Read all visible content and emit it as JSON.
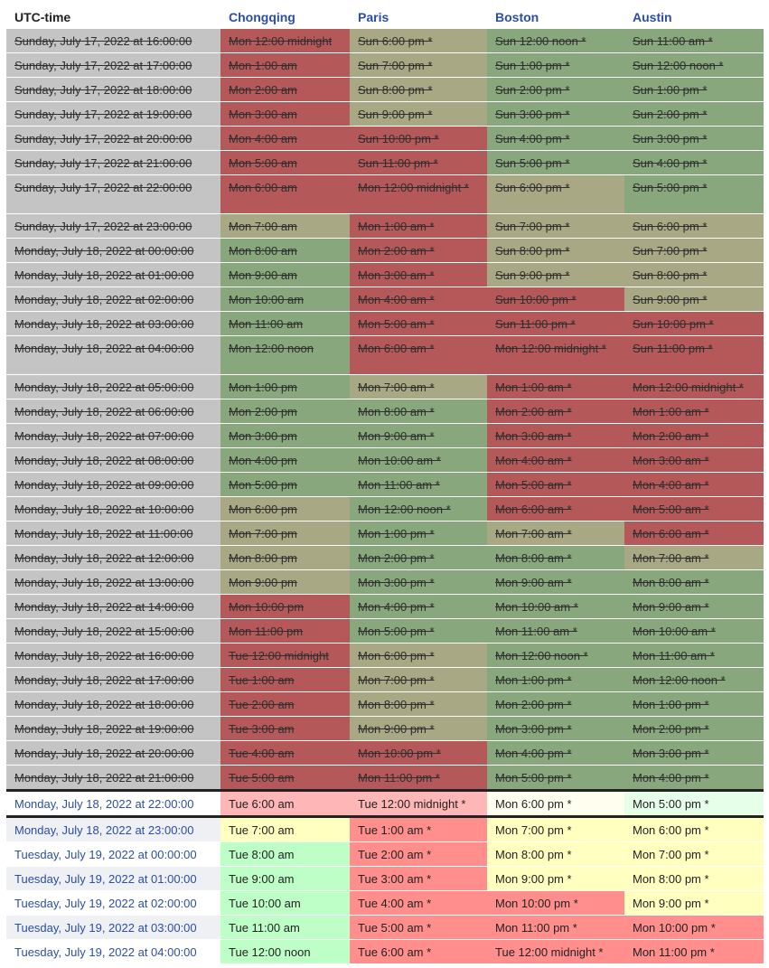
{
  "headers": [
    "UTC-time",
    "Chongqing",
    "Paris",
    "Boston",
    "Austin"
  ],
  "colors": {
    "past_red": "#b5585a",
    "past_green": "#88a77d",
    "past_yellow": "#a9a884",
    "past_utc_gray": "#c4c4c4",
    "now_red": "#ff8e8c",
    "now_green": "#bdffc6",
    "now_yellow": "#ffffc0",
    "link_blue": "#2a4ea6"
  },
  "rows": [
    {
      "utc": "Sunday, July 17, 2022 at 16:00:00",
      "c": [
        "Mon 12:00 midnight",
        "Sun 6:00 pm *",
        "Sun 12:00 noon *",
        "Sun 11:00 am *"
      ]
    },
    {
      "utc": "Sunday, July 17, 2022 at 17:00:00",
      "c": [
        "Mon 1:00 am",
        "Sun 7:00 pm *",
        "Sun 1:00 pm *",
        "Sun 12:00 noon *"
      ]
    },
    {
      "utc": "Sunday, July 17, 2022 at 18:00:00",
      "c": [
        "Mon 2:00 am",
        "Sun 8:00 pm *",
        "Sun 2:00 pm *",
        "Sun 1:00 pm *"
      ]
    },
    {
      "utc": "Sunday, July 17, 2022 at 19:00:00",
      "c": [
        "Mon 3:00 am",
        "Sun 9:00 pm *",
        "Sun 3:00 pm *",
        "Sun 2:00 pm *"
      ]
    },
    {
      "utc": "Sunday, July 17, 2022 at 20:00:00",
      "c": [
        "Mon 4:00 am",
        "Sun 10:00 pm *",
        "Sun 4:00 pm *",
        "Sun 3:00 pm *"
      ]
    },
    {
      "utc": "Sunday, July 17, 2022 at 21:00:00",
      "c": [
        "Mon 5:00 am",
        "Sun 11:00 pm *",
        "Sun 5:00 pm *",
        "Sun 4:00 pm *"
      ]
    },
    {
      "utc": "Sunday, July 17, 2022 at 22:00:00",
      "c": [
        "Mon 6:00 am",
        "Mon 12:00 midnight *",
        "Sun 6:00 pm *",
        "Sun 5:00 pm *"
      ]
    },
    {
      "utc": "Sunday, July 17, 2022 at 23:00:00",
      "c": [
        "Mon 7:00 am",
        "Mon 1:00 am *",
        "Sun 7:00 pm *",
        "Sun 6:00 pm *"
      ]
    },
    {
      "utc": "Monday, July 18, 2022 at 00:00:00",
      "c": [
        "Mon 8:00 am",
        "Mon 2:00 am *",
        "Sun 8:00 pm *",
        "Sun 7:00 pm *"
      ]
    },
    {
      "utc": "Monday, July 18, 2022 at 01:00:00",
      "c": [
        "Mon 9:00 am",
        "Mon 3:00 am *",
        "Sun 9:00 pm *",
        "Sun 8:00 pm *"
      ]
    },
    {
      "utc": "Monday, July 18, 2022 at 02:00:00",
      "c": [
        "Mon 10:00 am",
        "Mon 4:00 am *",
        "Sun 10:00 pm *",
        "Sun 9:00 pm *"
      ]
    },
    {
      "utc": "Monday, July 18, 2022 at 03:00:00",
      "c": [
        "Mon 11:00 am",
        "Mon 5:00 am *",
        "Sun 11:00 pm *",
        "Sun 10:00 pm *"
      ]
    },
    {
      "utc": "Monday, July 18, 2022 at 04:00:00",
      "c": [
        "Mon 12:00 noon",
        "Mon 6:00 am *",
        "Mon 12:00 midnight *",
        "Sun 11:00 pm *"
      ]
    },
    {
      "utc": "Monday, July 18, 2022 at 05:00:00",
      "c": [
        "Mon 1:00 pm",
        "Mon 7:00 am *",
        "Mon 1:00 am *",
        "Mon 12:00 midnight *"
      ]
    },
    {
      "utc": "Monday, July 18, 2022 at 06:00:00",
      "c": [
        "Mon 2:00 pm",
        "Mon 8:00 am *",
        "Mon 2:00 am *",
        "Mon 1:00 am *"
      ]
    },
    {
      "utc": "Monday, July 18, 2022 at 07:00:00",
      "c": [
        "Mon 3:00 pm",
        "Mon 9:00 am *",
        "Mon 3:00 am *",
        "Mon 2:00 am *"
      ]
    },
    {
      "utc": "Monday, July 18, 2022 at 08:00:00",
      "c": [
        "Mon 4:00 pm",
        "Mon 10:00 am *",
        "Mon 4:00 am *",
        "Mon 3:00 am *"
      ]
    },
    {
      "utc": "Monday, July 18, 2022 at 09:00:00",
      "c": [
        "Mon 5:00 pm",
        "Mon 11:00 am *",
        "Mon 5:00 am *",
        "Mon 4:00 am *"
      ]
    },
    {
      "utc": "Monday, July 18, 2022 at 10:00:00",
      "c": [
        "Mon 6:00 pm",
        "Mon 12:00 noon *",
        "Mon 6:00 am *",
        "Mon 5:00 am *"
      ]
    },
    {
      "utc": "Monday, July 18, 2022 at 11:00:00",
      "c": [
        "Mon 7:00 pm",
        "Mon 1:00 pm *",
        "Mon 7:00 am *",
        "Mon 6:00 am *"
      ]
    },
    {
      "utc": "Monday, July 18, 2022 at 12:00:00",
      "c": [
        "Mon 8:00 pm",
        "Mon 2:00 pm *",
        "Mon 8:00 am *",
        "Mon 7:00 am *"
      ]
    },
    {
      "utc": "Monday, July 18, 2022 at 13:00:00",
      "c": [
        "Mon 9:00 pm",
        "Mon 3:00 pm *",
        "Mon 9:00 am *",
        "Mon 8:00 am *"
      ]
    },
    {
      "utc": "Monday, July 18, 2022 at 14:00:00",
      "c": [
        "Mon 10:00 pm",
        "Mon 4:00 pm *",
        "Mon 10:00 am *",
        "Mon 9:00 am *"
      ]
    },
    {
      "utc": "Monday, July 18, 2022 at 15:00:00",
      "c": [
        "Mon 11:00 pm",
        "Mon 5:00 pm *",
        "Mon 11:00 am *",
        "Mon 10:00 am *"
      ]
    },
    {
      "utc": "Monday, July 18, 2022 at 16:00:00",
      "c": [
        "Tue 12:00 midnight",
        "Mon 6:00 pm *",
        "Mon 12:00 noon *",
        "Mon 11:00 am *"
      ]
    },
    {
      "utc": "Monday, July 18, 2022 at 17:00:00",
      "c": [
        "Tue 1:00 am",
        "Mon 7:00 pm *",
        "Mon 1:00 pm *",
        "Mon 12:00 noon *"
      ]
    },
    {
      "utc": "Monday, July 18, 2022 at 18:00:00",
      "c": [
        "Tue 2:00 am",
        "Mon 8:00 pm *",
        "Mon 2:00 pm *",
        "Mon 1:00 pm *"
      ]
    },
    {
      "utc": "Monday, July 18, 2022 at 19:00:00",
      "c": [
        "Tue 3:00 am",
        "Mon 9:00 pm *",
        "Mon 3:00 pm *",
        "Mon 2:00 pm *"
      ]
    },
    {
      "utc": "Monday, July 18, 2022 at 20:00:00",
      "c": [
        "Tue 4:00 am",
        "Mon 10:00 pm *",
        "Mon 4:00 pm *",
        "Mon 3:00 pm *"
      ]
    },
    {
      "utc": "Monday, July 18, 2022 at 21:00:00",
      "c": [
        "Tue 5:00 am",
        "Mon 11:00 pm *",
        "Mon 5:00 pm *",
        "Mon 4:00 pm *"
      ]
    },
    {
      "utc": "Monday, July 18, 2022 at 22:00:00",
      "c": [
        "Tue 6:00 am",
        "Tue 12:00 midnight *",
        "Mon 6:00 pm *",
        "Mon 5:00 pm *"
      ]
    },
    {
      "utc": "Monday, July 18, 2022 at 23:00:00",
      "c": [
        "Tue 7:00 am",
        "Tue 1:00 am *",
        "Mon 7:00 pm *",
        "Mon 6:00 pm *"
      ]
    },
    {
      "utc": "Tuesday, July 19, 2022 at 00:00:00",
      "c": [
        "Tue 8:00 am",
        "Tue 2:00 am *",
        "Mon 8:00 pm *",
        "Mon 7:00 pm *"
      ]
    },
    {
      "utc": "Tuesday, July 19, 2022 at 01:00:00",
      "c": [
        "Tue 9:00 am",
        "Tue 3:00 am *",
        "Mon 9:00 pm *",
        "Mon 8:00 pm *"
      ]
    },
    {
      "utc": "Tuesday, July 19, 2022 at 02:00:00",
      "c": [
        "Tue 10:00 am",
        "Tue 4:00 am *",
        "Mon 10:00 pm *",
        "Mon 9:00 pm *"
      ]
    },
    {
      "utc": "Tuesday, July 19, 2022 at 03:00:00",
      "c": [
        "Tue 11:00 am",
        "Tue 5:00 am *",
        "Mon 11:00 pm *",
        "Mon 10:00 pm *"
      ]
    },
    {
      "utc": "Tuesday, July 19, 2022 at 04:00:00",
      "c": [
        "Tue 12:00 noon",
        "Tue 6:00 am *",
        "Tue 12:00 midnight *",
        "Mon 11:00 pm *"
      ]
    }
  ]
}
